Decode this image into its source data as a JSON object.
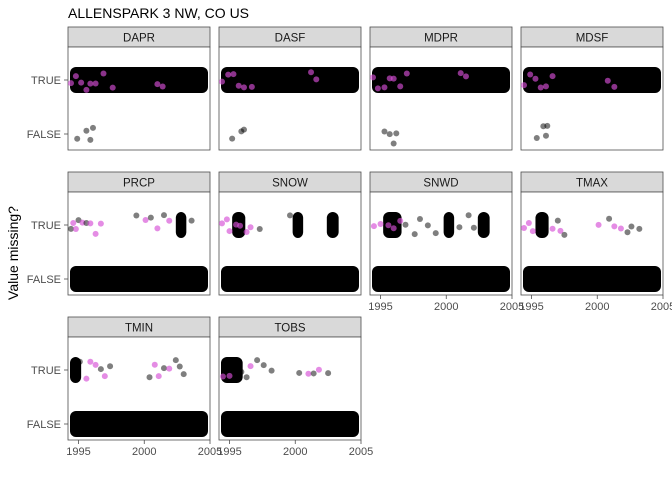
{
  "chart_data": {
    "type": "scatter",
    "title": "ALLENSPARK 3 NW, CO US",
    "xlabel": "",
    "ylabel": "Value missing?",
    "x_ticks": [
      "1995",
      "2000",
      "2005"
    ],
    "xlim": [
      1994.2,
      2005.0
    ],
    "y_categories": [
      "FALSE",
      "TRUE"
    ],
    "colors": {
      "default": "#000000",
      "highlight": "#d64fd6",
      "strip_fill": "#d9d9d9",
      "panel_border": "#4d4d4d"
    },
    "panels": [
      {
        "name": "DAPR",
        "true_dense": [
          [
            1994.2,
            2005.0
          ]
        ],
        "false_dense": [],
        "true_points": [
          {
            "x": 1994.4,
            "highlight": true
          },
          {
            "x": 1994.8,
            "highlight": true
          },
          {
            "x": 1995.2,
            "highlight": true
          },
          {
            "x": 1995.6,
            "highlight": true
          },
          {
            "x": 1995.9,
            "highlight": true
          },
          {
            "x": 1996.3,
            "highlight": true
          },
          {
            "x": 1996.9,
            "highlight": true
          },
          {
            "x": 1997.6,
            "highlight": true
          },
          {
            "x": 2001.0,
            "highlight": true
          },
          {
            "x": 2001.4,
            "highlight": true
          }
        ],
        "false_points": [
          {
            "x": 1994.9
          },
          {
            "x": 1995.6
          },
          {
            "x": 1995.9
          },
          {
            "x": 1996.1
          }
        ]
      },
      {
        "name": "DASF",
        "true_dense": [
          [
            1994.2,
            2005.0
          ]
        ],
        "false_dense": [],
        "true_points": [
          {
            "x": 1994.4,
            "highlight": true
          },
          {
            "x": 1994.9,
            "highlight": true
          },
          {
            "x": 1995.3,
            "highlight": true
          },
          {
            "x": 1995.7,
            "highlight": true
          },
          {
            "x": 1996.1,
            "highlight": true
          },
          {
            "x": 1996.7,
            "highlight": true
          },
          {
            "x": 2001.2,
            "highlight": true
          },
          {
            "x": 2001.6,
            "highlight": true
          }
        ],
        "false_points": [
          {
            "x": 1995.2
          },
          {
            "x": 1995.9
          },
          {
            "x": 1996.1
          }
        ]
      },
      {
        "name": "MDPR",
        "true_dense": [
          [
            1994.2,
            2005.0
          ]
        ],
        "false_dense": [],
        "true_points": [
          {
            "x": 1994.4,
            "highlight": true
          },
          {
            "x": 1994.8,
            "highlight": true
          },
          {
            "x": 1995.3,
            "highlight": true
          },
          {
            "x": 1995.7,
            "highlight": true
          },
          {
            "x": 1996.0,
            "highlight": true
          },
          {
            "x": 1996.5,
            "highlight": true
          },
          {
            "x": 1997.0,
            "highlight": true
          },
          {
            "x": 2001.1,
            "highlight": true
          },
          {
            "x": 2001.5,
            "highlight": true
          }
        ],
        "false_points": [
          {
            "x": 1995.3
          },
          {
            "x": 1995.7
          },
          {
            "x": 1996.0
          },
          {
            "x": 1996.2
          }
        ]
      },
      {
        "name": "MDSF",
        "true_dense": [
          [
            1994.2,
            2005.0
          ]
        ],
        "false_dense": [],
        "true_points": [
          {
            "x": 1994.4,
            "highlight": true
          },
          {
            "x": 1994.9,
            "highlight": true
          },
          {
            "x": 1995.3,
            "highlight": true
          },
          {
            "x": 1995.7,
            "highlight": true
          },
          {
            "x": 1996.1,
            "highlight": true
          },
          {
            "x": 1996.6,
            "highlight": true
          },
          {
            "x": 2000.8,
            "highlight": true
          },
          {
            "x": 2001.3,
            "highlight": true
          }
        ],
        "false_points": [
          {
            "x": 1995.4
          },
          {
            "x": 1995.9
          },
          {
            "x": 1996.1
          },
          {
            "x": 1996.2
          }
        ]
      },
      {
        "name": "PRCP",
        "true_dense": [
          [
            2002.4,
            2003.2
          ]
        ],
        "false_dense": [
          [
            1994.2,
            2005.0
          ]
        ],
        "true_points": [
          {
            "x": 1994.4,
            "highlight": false
          },
          {
            "x": 1994.6,
            "highlight": true
          },
          {
            "x": 1994.8,
            "highlight": true
          },
          {
            "x": 1995.0,
            "highlight": false
          },
          {
            "x": 1995.3,
            "highlight": true
          },
          {
            "x": 1995.6,
            "highlight": false
          },
          {
            "x": 1995.9,
            "highlight": true
          },
          {
            "x": 1996.3,
            "highlight": true
          },
          {
            "x": 1996.7,
            "highlight": true
          },
          {
            "x": 1999.4,
            "highlight": false
          },
          {
            "x": 2000.1,
            "highlight": true
          },
          {
            "x": 2000.5,
            "highlight": false
          },
          {
            "x": 2001.0,
            "highlight": true
          },
          {
            "x": 2001.5,
            "highlight": false
          },
          {
            "x": 2001.9,
            "highlight": true
          },
          {
            "x": 2003.6,
            "highlight": false
          }
        ],
        "false_points": []
      },
      {
        "name": "SNOW",
        "true_dense": [
          [
            1995.2,
            1996.2
          ],
          [
            1999.8,
            2000.6
          ],
          [
            2002.4,
            2003.3
          ]
        ],
        "false_dense": [
          [
            1994.2,
            2005.0
          ]
        ],
        "true_points": [
          {
            "x": 1994.4,
            "highlight": true
          },
          {
            "x": 1994.8,
            "highlight": true
          },
          {
            "x": 1995.0,
            "highlight": true
          },
          {
            "x": 1995.5,
            "highlight": true
          },
          {
            "x": 1995.8,
            "highlight": true
          },
          {
            "x": 1996.3,
            "highlight": true
          },
          {
            "x": 1996.6,
            "highlight": true
          },
          {
            "x": 1997.3,
            "highlight": false
          },
          {
            "x": 1999.6,
            "highlight": false
          }
        ],
        "false_points": []
      },
      {
        "name": "SNWD",
        "true_dense": [
          [
            1995.2,
            1996.6
          ],
          [
            1999.8,
            2000.6
          ],
          [
            2002.4,
            2003.3
          ]
        ],
        "false_dense": [
          [
            1994.2,
            2005.0
          ]
        ],
        "true_points": [
          {
            "x": 1994.5,
            "highlight": true
          },
          {
            "x": 1995.0,
            "highlight": true
          },
          {
            "x": 1995.6,
            "highlight": true
          },
          {
            "x": 1996.0,
            "highlight": true
          },
          {
            "x": 1996.5,
            "highlight": true
          },
          {
            "x": 1996.9,
            "highlight": false
          },
          {
            "x": 1997.6,
            "highlight": false
          },
          {
            "x": 1998.0,
            "highlight": false
          },
          {
            "x": 1998.6,
            "highlight": false
          },
          {
            "x": 1999.2,
            "highlight": false
          },
          {
            "x": 2001.0,
            "highlight": false
          },
          {
            "x": 2001.7,
            "highlight": false
          },
          {
            "x": 2002.1,
            "highlight": false
          }
        ],
        "false_points": []
      },
      {
        "name": "TMAX",
        "true_dense": [
          [
            1995.3,
            1996.3
          ]
        ],
        "false_dense": [
          [
            1994.2,
            2005.0
          ]
        ],
        "true_points": [
          {
            "x": 1994.4,
            "highlight": true
          },
          {
            "x": 1994.8,
            "highlight": true
          },
          {
            "x": 1995.1,
            "highlight": true
          },
          {
            "x": 1996.6,
            "highlight": true
          },
          {
            "x": 1997.0,
            "highlight": false
          },
          {
            "x": 1997.2,
            "highlight": true
          },
          {
            "x": 1997.5,
            "highlight": false
          },
          {
            "x": 2000.1,
            "highlight": true
          },
          {
            "x": 2000.9,
            "highlight": false
          },
          {
            "x": 2001.3,
            "highlight": true
          },
          {
            "x": 2001.8,
            "highlight": true
          },
          {
            "x": 2002.3,
            "highlight": false
          },
          {
            "x": 2002.6,
            "highlight": false
          },
          {
            "x": 2003.2,
            "highlight": false
          }
        ],
        "false_points": []
      },
      {
        "name": "TMIN",
        "true_dense": [
          [
            1994.3,
            1995.2
          ]
        ],
        "false_dense": [
          [
            1994.2,
            2005.0
          ]
        ],
        "true_points": [
          {
            "x": 1995.1,
            "highlight": false
          },
          {
            "x": 1995.6,
            "highlight": true
          },
          {
            "x": 1995.9,
            "highlight": true
          },
          {
            "x": 1996.3,
            "highlight": true
          },
          {
            "x": 1996.7,
            "highlight": false
          },
          {
            "x": 1997.0,
            "highlight": true
          },
          {
            "x": 1997.4,
            "highlight": false
          },
          {
            "x": 2000.4,
            "highlight": false
          },
          {
            "x": 2000.8,
            "highlight": true
          },
          {
            "x": 2001.1,
            "highlight": true
          },
          {
            "x": 2001.5,
            "highlight": false
          },
          {
            "x": 2001.9,
            "highlight": true
          },
          {
            "x": 2002.4,
            "highlight": false
          },
          {
            "x": 2002.7,
            "highlight": false
          },
          {
            "x": 2003.0,
            "highlight": false
          }
        ],
        "false_points": []
      },
      {
        "name": "TOBS",
        "true_dense": [
          [
            1994.3,
            1996.0
          ]
        ],
        "false_dense": [
          [
            1994.2,
            2005.0
          ]
        ],
        "true_points": [
          {
            "x": 1994.5,
            "highlight": true
          },
          {
            "x": 1995.0,
            "highlight": true
          },
          {
            "x": 1995.4,
            "highlight": false
          },
          {
            "x": 1995.9,
            "highlight": false
          },
          {
            "x": 1996.3,
            "highlight": false
          },
          {
            "x": 1996.6,
            "highlight": true
          },
          {
            "x": 1997.1,
            "highlight": false
          },
          {
            "x": 1997.6,
            "highlight": false
          },
          {
            "x": 1998.2,
            "highlight": false
          },
          {
            "x": 2000.3,
            "highlight": false
          },
          {
            "x": 2001.0,
            "highlight": true
          },
          {
            "x": 2001.4,
            "highlight": false
          },
          {
            "x": 2001.8,
            "highlight": true
          },
          {
            "x": 2002.5,
            "highlight": false
          }
        ],
        "false_points": []
      }
    ]
  }
}
